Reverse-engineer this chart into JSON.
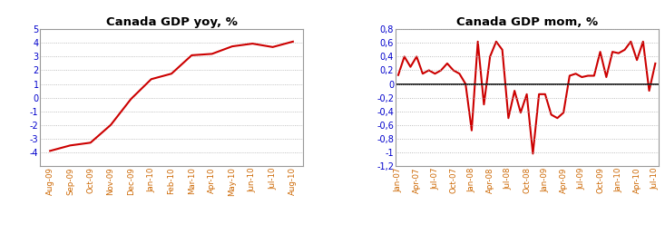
{
  "yoy_labels": [
    "Aug-09",
    "Sep-09",
    "Oct-09",
    "Nov-09",
    "Dec-09",
    "Jan-10",
    "Feb-10",
    "Mar-10",
    "Apr-10",
    "May-10",
    "Jun-10",
    "Jul-10",
    "Aug-10"
  ],
  "yoy_values": [
    -3.9,
    -3.5,
    -3.3,
    -2.0,
    -0.1,
    1.35,
    1.75,
    3.1,
    3.2,
    3.75,
    3.95,
    3.7,
    4.1
  ],
  "yoy_title": "Canada GDP yoy, %",
  "yoy_ylim": [
    -5,
    5
  ],
  "yoy_yticks": [
    -4,
    -3,
    -2,
    -1,
    0,
    1,
    2,
    3,
    4,
    5
  ],
  "yoy_yticklabels": [
    "-4",
    "-3",
    "-2",
    "-1",
    "0",
    "1",
    "2",
    "3",
    "4",
    "5"
  ],
  "mom_values": [
    0.13,
    0.4,
    0.25,
    0.4,
    0.15,
    0.2,
    0.15,
    0.2,
    0.3,
    0.2,
    0.15,
    0.0,
    -0.68,
    0.62,
    -0.3,
    0.4,
    0.62,
    0.5,
    -0.5,
    -0.1,
    -0.42,
    -0.15,
    -1.02,
    -0.15,
    -0.15,
    -0.45,
    -0.5,
    -0.42,
    0.12,
    0.15,
    0.1,
    0.12,
    0.12,
    0.47,
    0.1,
    0.47,
    0.45,
    0.5,
    0.62,
    0.35,
    0.62,
    -0.1,
    0.3
  ],
  "mom_tick_positions": [
    0,
    3,
    6,
    9,
    12,
    15,
    18,
    21,
    24,
    27,
    30,
    33,
    36,
    39,
    42
  ],
  "mom_tick_labels": [
    "Jan-07",
    "Apr-07",
    "Jul-07",
    "Oct-07",
    "Jan-08",
    "Apr-08",
    "Jul-08",
    "Oct-08",
    "Jan-09",
    "Apr-09",
    "Jul-09",
    "Oct-09",
    "Jan-10",
    "Apr-10",
    "Jul-10"
  ],
  "mom_title": "Canada GDP mom, %",
  "mom_ylim": [
    -1.2,
    0.8
  ],
  "mom_yticks": [
    -1.2,
    -1.0,
    -0.8,
    -0.6,
    -0.4,
    -0.2,
    0.0,
    0.2,
    0.4,
    0.6,
    0.8
  ],
  "mom_yticklabels": [
    "-1,2",
    "-1",
    "-0,8",
    "-0,6",
    "-0,4",
    "-0,2",
    "0",
    "0,2",
    "0,4",
    "0,6",
    "0,8"
  ],
  "line_color": "#cc0000",
  "bg_color": "#ffffff",
  "plot_bg": "#ffffff",
  "title_color": "#000000",
  "xtick_color": "#cc6600",
  "ytick_color": "#0000cc",
  "grid_color": "#aaaaaa",
  "spine_color": "#999999"
}
